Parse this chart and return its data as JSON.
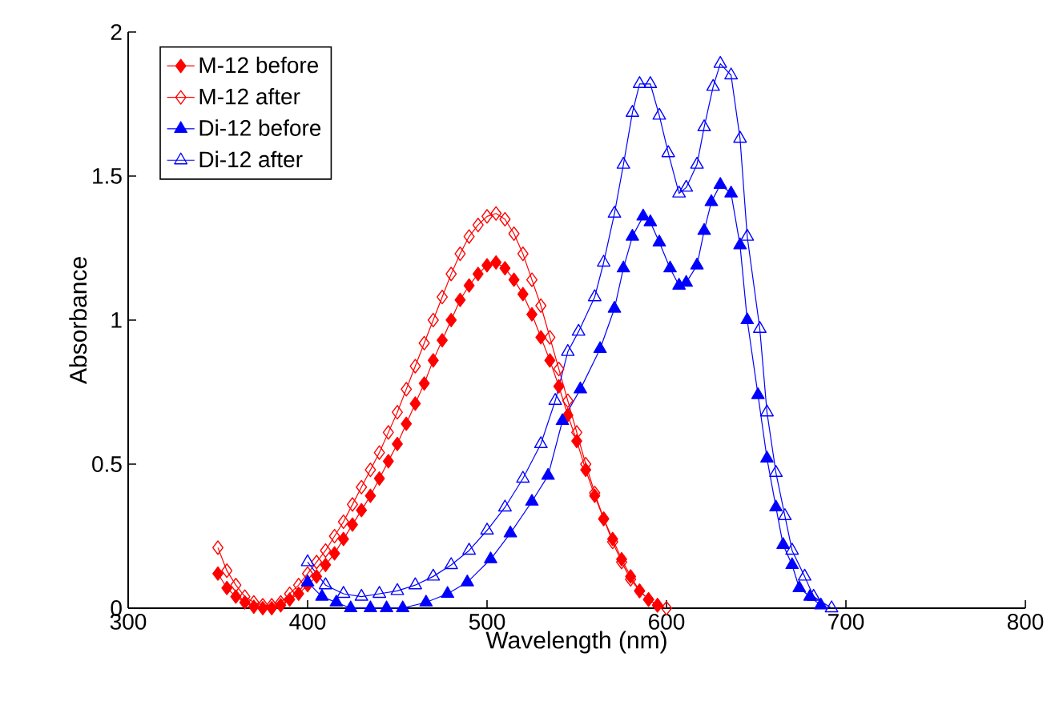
{
  "chart_data": {
    "type": "line",
    "xlabel": "Wavelength (nm)",
    "ylabel": "Absorbance",
    "xlim": [
      300,
      800
    ],
    "xticks": [
      300,
      400,
      500,
      600,
      700,
      800
    ],
    "ylim": [
      0,
      2
    ],
    "yticks": [
      0,
      0.5,
      1,
      1.5,
      2
    ],
    "grid": false,
    "legend": "top left",
    "line_style": "solid",
    "series": [
      {
        "name": "M-12 before",
        "color": "#ff0000",
        "marker": "diamond",
        "x": [
          350,
          355,
          360,
          365,
          370,
          375,
          380,
          385,
          390,
          395,
          400,
          405,
          410,
          415,
          420,
          425,
          430,
          435,
          440,
          445,
          450,
          455,
          460,
          465,
          470,
          475,
          480,
          485,
          490,
          495,
          500,
          505,
          510,
          515,
          520,
          525,
          530,
          535,
          540,
          545,
          550,
          555,
          560,
          565,
          570,
          575,
          580,
          585,
          590,
          595
        ],
        "values": [
          0.12,
          0.07,
          0.04,
          0.02,
          0.005,
          0,
          0,
          0.01,
          0.03,
          0.05,
          0.08,
          0.11,
          0.15,
          0.19,
          0.24,
          0.29,
          0.34,
          0.39,
          0.45,
          0.51,
          0.57,
          0.64,
          0.71,
          0.78,
          0.86,
          0.93,
          1.0,
          1.07,
          1.12,
          1.16,
          1.19,
          1.2,
          1.18,
          1.14,
          1.09,
          1.02,
          0.94,
          0.86,
          0.77,
          0.67,
          0.58,
          0.48,
          0.39,
          0.31,
          0.24,
          0.17,
          0.11,
          0.06,
          0.03,
          0.01
        ]
      },
      {
        "name": "M-12 after",
        "color": "#ff0000",
        "marker": "diamond",
        "x": [
          350,
          355,
          360,
          365,
          370,
          375,
          380,
          385,
          390,
          395,
          400,
          405,
          410,
          415,
          420,
          425,
          430,
          435,
          440,
          445,
          450,
          455,
          460,
          465,
          470,
          475,
          480,
          485,
          490,
          495,
          500,
          505,
          510,
          515,
          520,
          525,
          530,
          535,
          540,
          545,
          550,
          555,
          560,
          565,
          570,
          575,
          580,
          585,
          590,
          595,
          600
        ],
        "values": [
          0.21,
          0.13,
          0.08,
          0.04,
          0.02,
          0.01,
          0.01,
          0.02,
          0.05,
          0.08,
          0.12,
          0.16,
          0.2,
          0.25,
          0.3,
          0.36,
          0.42,
          0.48,
          0.54,
          0.61,
          0.68,
          0.76,
          0.84,
          0.92,
          1.0,
          1.08,
          1.16,
          1.23,
          1.29,
          1.33,
          1.36,
          1.37,
          1.35,
          1.3,
          1.23,
          1.14,
          1.05,
          0.94,
          0.83,
          0.72,
          0.61,
          0.5,
          0.4,
          0.31,
          0.23,
          0.16,
          0.1,
          0.06,
          0.03,
          0.01,
          0
        ]
      },
      {
        "name": "Di-12 before",
        "color": "#0000ff",
        "marker": "triangle",
        "x": [
          400,
          408,
          416,
          424,
          435,
          444,
          453,
          466,
          478,
          489,
          502,
          513,
          525,
          534,
          542,
          552,
          563,
          571,
          576,
          581,
          587,
          591,
          596,
          602,
          607,
          611,
          617,
          621,
          625,
          630,
          636,
          641,
          645,
          651,
          656,
          661,
          665,
          670,
          674,
          680,
          686
        ],
        "values": [
          0.09,
          0.04,
          0.02,
          0,
          0,
          0,
          0,
          0.02,
          0.05,
          0.09,
          0.17,
          0.26,
          0.37,
          0.46,
          0.65,
          0.76,
          0.9,
          1.04,
          1.18,
          1.29,
          1.36,
          1.34,
          1.27,
          1.18,
          1.12,
          1.13,
          1.19,
          1.31,
          1.41,
          1.47,
          1.44,
          1.26,
          1.0,
          0.74,
          0.52,
          0.35,
          0.22,
          0.15,
          0.07,
          0.04,
          0.01
        ]
      },
      {
        "name": "Di-12 after",
        "color": "#0000ff",
        "marker": "triangle",
        "x": [
          400,
          410,
          420,
          430,
          440,
          450,
          460,
          470,
          480,
          490,
          500,
          510,
          520,
          530,
          538,
          545,
          551,
          560,
          565,
          571,
          576,
          581,
          585,
          591,
          596,
          601,
          607,
          611,
          617,
          621,
          626,
          630,
          636,
          641,
          645,
          652,
          656,
          661,
          666,
          670,
          677,
          682,
          692
        ],
        "values": [
          0.16,
          0.08,
          0.05,
          0.04,
          0.05,
          0.06,
          0.08,
          0.11,
          0.15,
          0.2,
          0.27,
          0.35,
          0.45,
          0.57,
          0.72,
          0.89,
          0.96,
          1.08,
          1.2,
          1.37,
          1.54,
          1.72,
          1.82,
          1.82,
          1.71,
          1.58,
          1.44,
          1.46,
          1.54,
          1.67,
          1.81,
          1.89,
          1.85,
          1.63,
          1.29,
          0.97,
          0.68,
          0.47,
          0.32,
          0.2,
          0.11,
          0.04,
          0
        ]
      }
    ]
  }
}
